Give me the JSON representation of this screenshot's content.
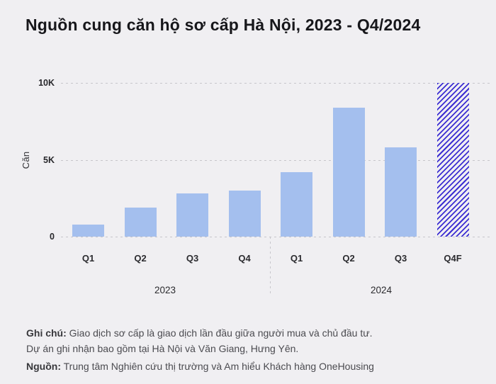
{
  "title": "Nguồn cung căn hộ sơ cấp Hà Nội, 2023 - Q4/2024",
  "chart_data": {
    "type": "bar",
    "title": "Nguồn cung căn hộ sơ cấp Hà Nội, 2023 - Q4/2024",
    "ylabel": "Căn",
    "ylim": [
      0,
      10000
    ],
    "yticks": [
      {
        "label": "10K",
        "value": 10000
      },
      {
        "label": "5K",
        "value": 5000
      },
      {
        "label": "0",
        "value": 0
      }
    ],
    "grid": "horizontal-dotted",
    "legend": "none",
    "categories": [
      "Q1",
      "Q2",
      "Q3",
      "Q4",
      "Q1",
      "Q2",
      "Q3",
      "Q4F"
    ],
    "groups": [
      {
        "label": "2023",
        "from": 0,
        "to": 3
      },
      {
        "label": "2024",
        "from": 4,
        "to": 7
      }
    ],
    "values": [
      800,
      1900,
      2800,
      3000,
      4200,
      8400,
      5800,
      10000
    ],
    "forecast_index": 7,
    "colors": {
      "bar": "#a4bfee",
      "forecast_hatch": "#3c2ed2",
      "background": "#f0eff2",
      "gridline": "#c7c6cb"
    }
  },
  "footer": {
    "note_label": "Ghi chú:",
    "note_line1": "Giao dịch sơ cấp là giao dịch lần đầu giữa người mua và chủ đầu tư.",
    "note_line2": "Dự án ghi nhận bao gồm tại Hà Nội và Văn Giang, Hưng Yên.",
    "source_label": "Nguồn:",
    "source_text": "Trung tâm Nghiên cứu thị trường và Am hiểu Khách hàng OneHousing"
  }
}
